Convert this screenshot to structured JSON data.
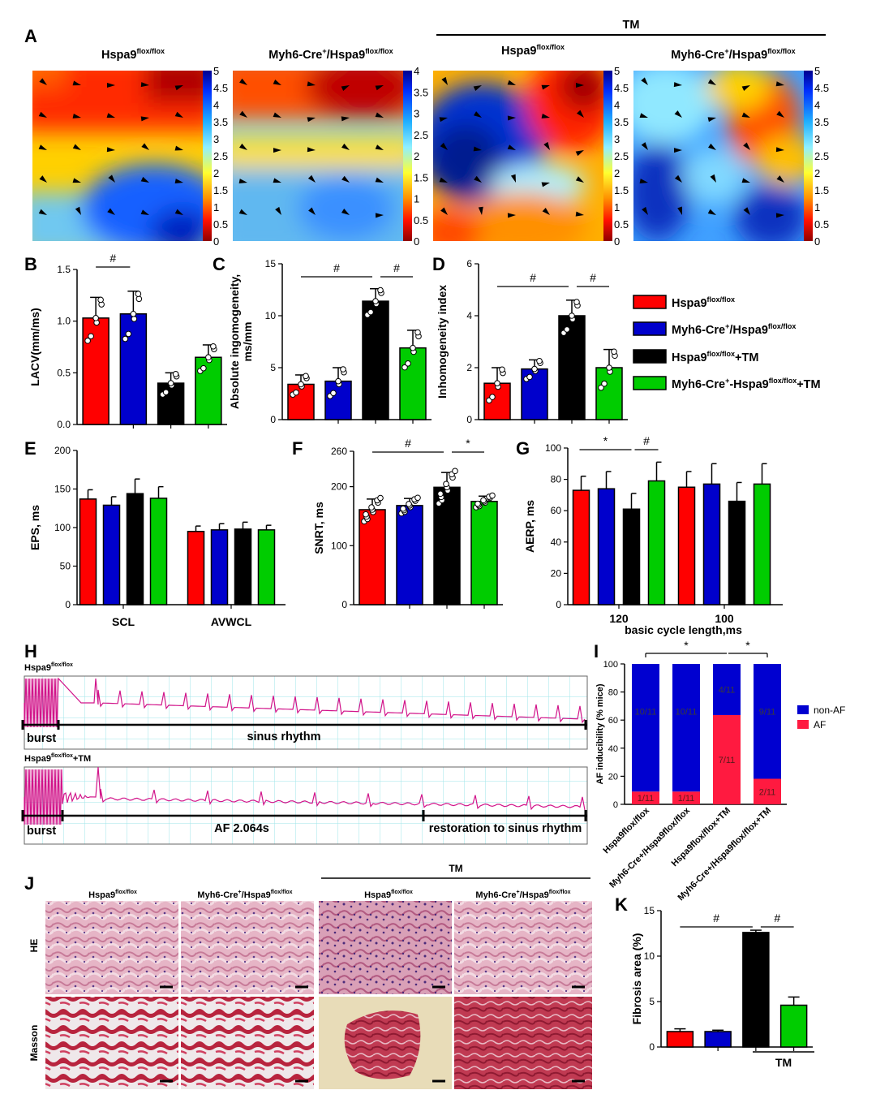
{
  "panel_letters": {
    "a": "A",
    "b": "B",
    "c": "C",
    "d": "D",
    "e": "E",
    "f": "F",
    "g": "G",
    "h": "H",
    "i": "I",
    "j": "J",
    "k": "K"
  },
  "groups": [
    {
      "name": "Hspa9flox/flox",
      "color": "#ff0000"
    },
    {
      "name": "Myh6-Cre+/Hspa9flox/flox",
      "color": "#0000cc"
    },
    {
      "name": "Hspa9flox/flox+TM",
      "color": "#000000"
    },
    {
      "name": "Myh6-Cre+-Hspa9flox/flox+TM",
      "color": "#00cc00"
    }
  ],
  "legend": {
    "l1_base": "Hspa9",
    "l1_sup": "flox/flox",
    "l2_base": "Myh6-Cre",
    "l2_sup1": "+",
    "l2_mid": "/Hspa9",
    "l2_sup2": "flox/flox",
    "l3_base": "Hspa9",
    "l3_sup": "flox/flox",
    "l3_tail": "+TM",
    "l4_base": "Myh6-Cre",
    "l4_sup1": "+",
    "l4_mid": "-Hspa9",
    "l4_sup2": "flox/flox",
    "l4_tail": "+TM"
  },
  "map_panel": {
    "tm_label": "TM",
    "titles": [
      {
        "base": "Hspa9",
        "sup": "flox/flox"
      },
      {
        "base": "Myh6-Cre",
        "sup1": "+",
        "mid": "/Hspa9",
        "sup2": "flox/flox"
      },
      {
        "base": "Hspa9",
        "sup": "flox/flox"
      },
      {
        "base": "Myh6-Cre",
        "sup1": "+",
        "mid": "/Hspa9",
        "sup2": "flox/flox"
      }
    ],
    "colorbars": [
      [
        "5",
        "4.5",
        "4",
        "3.5",
        "3",
        "2.5",
        "2",
        "1.5",
        "1",
        "0.5",
        "0"
      ],
      [
        "4",
        "3.5",
        "3",
        "2.5",
        "2",
        "1.5",
        "1",
        "0.5",
        "0"
      ],
      [
        "5",
        "4.5",
        "4",
        "3.5",
        "3",
        "2.5",
        "2",
        "1.5",
        "1",
        "0.5",
        "0"
      ],
      [
        "5",
        "4.5",
        "4",
        "3.5",
        "3",
        "2.5",
        "2",
        "1.5",
        "1",
        "0.5",
        "0"
      ]
    ]
  },
  "chart_data": [
    {
      "id": "B",
      "type": "bar",
      "ylabel": "LACV(mm/ms)",
      "ylim": [
        0,
        1.5
      ],
      "yticks": [
        "0.0",
        "0.5",
        "1.0",
        "1.5"
      ],
      "values": [
        1.03,
        1.07,
        0.4,
        0.65
      ],
      "errors": [
        0.2,
        0.22,
        0.1,
        0.12
      ],
      "significance": [
        {
          "symbol": "#",
          "between": [
            0,
            1
          ]
        }
      ]
    },
    {
      "id": "C",
      "type": "bar",
      "ylabel": "Absolute ingomogeneity, ms/mm",
      "ylabel_line1": "Absolute ingomogeneity,",
      "ylabel_line2": "ms/mm",
      "ylim": [
        0,
        15
      ],
      "yticks": [
        "0",
        "5",
        "10",
        "15"
      ],
      "values": [
        3.4,
        3.7,
        11.4,
        6.9
      ],
      "errors": [
        0.9,
        1.3,
        1.2,
        1.7
      ],
      "significance": [
        {
          "symbol": "#",
          "between": [
            0,
            2
          ]
        },
        {
          "symbol": "#",
          "between": [
            2,
            3
          ]
        }
      ]
    },
    {
      "id": "D",
      "type": "bar",
      "ylabel": "Inhomogeneity index",
      "ylim": [
        0,
        6
      ],
      "yticks": [
        "0",
        "2",
        "4",
        "6"
      ],
      "values": [
        1.4,
        1.95,
        4.0,
        2.0
      ],
      "errors": [
        0.6,
        0.35,
        0.6,
        0.7
      ],
      "significance": [
        {
          "symbol": "#",
          "between": [
            0,
            2
          ]
        },
        {
          "symbol": "#",
          "between": [
            2,
            3
          ]
        }
      ]
    },
    {
      "id": "E",
      "type": "bar",
      "ylabel": "EPS, ms",
      "ylim": [
        0,
        200
      ],
      "yticks": [
        "0",
        "50",
        "100",
        "150",
        "200"
      ],
      "categories": [
        "SCL",
        "AVWCL"
      ],
      "series": [
        {
          "name": "Hspa9flox/flox",
          "values": [
            137,
            95
          ],
          "errors": [
            12,
            7
          ]
        },
        {
          "name": "Myh6-Cre+/Hspa9flox/flox",
          "values": [
            129,
            97
          ],
          "errors": [
            11,
            8
          ]
        },
        {
          "name": "Hspa9flox/flox+TM",
          "values": [
            144,
            98
          ],
          "errors": [
            19,
            9
          ]
        },
        {
          "name": "Myh6-Cre+-Hspa9flox/flox+TM",
          "values": [
            138,
            97
          ],
          "errors": [
            15,
            6
          ]
        }
      ]
    },
    {
      "id": "F",
      "type": "bar",
      "ylabel": "SNRT, ms",
      "ylim": [
        0,
        260
      ],
      "yticks": [
        "0",
        "100",
        "200",
        "260"
      ],
      "values": [
        161,
        168,
        199,
        175
      ],
      "errors": [
        18,
        12,
        25,
        9
      ],
      "significance": [
        {
          "symbol": "#",
          "between": [
            0,
            2
          ]
        },
        {
          "symbol": "*",
          "between": [
            2,
            3
          ]
        }
      ]
    },
    {
      "id": "G",
      "type": "bar",
      "ylabel": "AERP, ms",
      "xlabel": "basic cycle length,ms",
      "ylim": [
        0,
        100
      ],
      "yticks": [
        "0",
        "20",
        "40",
        "60",
        "80",
        "100"
      ],
      "categories": [
        "120",
        "100"
      ],
      "series": [
        {
          "name": "Hspa9flox/flox",
          "values": [
            73,
            75
          ],
          "errors": [
            9,
            10
          ]
        },
        {
          "name": "Myh6-Cre+/Hspa9flox/flox",
          "values": [
            74,
            77
          ],
          "errors": [
            11,
            13
          ]
        },
        {
          "name": "Hspa9flox/flox+TM",
          "values": [
            61,
            66
          ],
          "errors": [
            10,
            12
          ]
        },
        {
          "name": "Myh6-Cre+-Hspa9flox/flox+TM",
          "values": [
            79,
            77
          ],
          "errors": [
            12,
            13
          ]
        }
      ],
      "significance": [
        {
          "symbol": "*",
          "between": [
            0,
            2
          ]
        },
        {
          "symbol": "#",
          "between": [
            2,
            3
          ]
        }
      ]
    },
    {
      "id": "I",
      "type": "bar",
      "stacked": true,
      "ylabel": "AF inducibility (% mice)",
      "ylim": [
        0,
        100
      ],
      "yticks": [
        "0",
        "20",
        "40",
        "60",
        "80",
        "100"
      ],
      "categories": [
        "Hspa9flox/flox",
        "Myh6-Cre+/Hspa9flox/flox",
        "Hspa9flox/flox+TM",
        "Myh6-Cre+/Hspa9flox/flox+TM"
      ],
      "series": [
        {
          "name": "AF",
          "color": "#ff1a40",
          "values": [
            9.1,
            9.1,
            63.6,
            18.2
          ],
          "labels": [
            "1/11",
            "1/11",
            "7/11",
            "2/11"
          ]
        },
        {
          "name": "non-AF",
          "color": "#0000d0",
          "values": [
            90.9,
            90.9,
            36.4,
            81.8
          ],
          "labels": [
            "10/11",
            "10/11",
            "4/11",
            "9/11"
          ]
        }
      ],
      "legend": [
        "non-AF",
        "AF"
      ],
      "significance": [
        {
          "symbol": "*",
          "between": [
            0,
            2
          ]
        },
        {
          "symbol": "*",
          "between": [
            2,
            3
          ]
        }
      ]
    },
    {
      "id": "K",
      "type": "bar",
      "ylabel": "Fibrosis area (%)",
      "ylim": [
        0,
        15
      ],
      "yticks": [
        "0",
        "5",
        "10",
        "15"
      ],
      "values": [
        1.7,
        1.7,
        12.6,
        4.6
      ],
      "errors": [
        0.3,
        0.15,
        0.25,
        0.9
      ],
      "group_label": "TM",
      "significance": [
        {
          "symbol": "#",
          "between": [
            0,
            2
          ]
        },
        {
          "symbol": "#",
          "between": [
            2,
            3
          ]
        }
      ]
    }
  ],
  "traces": {
    "h_title1_base": "Hspa9",
    "h_title1_sup": "flox/flox",
    "h_title2_base": "Hspa9",
    "h_title2_sup": "flox/flox",
    "h_title2_tail": "+TM",
    "burst": "burst",
    "sinus": "sinus rhythm",
    "af": "AF 2.064s",
    "restoration": "restoration to sinus rhythm"
  },
  "histology": {
    "tm_label": "TM",
    "row_labels": [
      "HE",
      "Masson"
    ],
    "titles": [
      {
        "base": "Hspa9",
        "sup": "flox/flox"
      },
      {
        "base": "Myh6-Cre",
        "sup1": "+",
        "mid": "/Hspa9",
        "sup2": "flox/flox"
      },
      {
        "base": "Hspa9",
        "sup": "flox/flox"
      },
      {
        "base": "Myh6-Cre",
        "sup1": "+",
        "mid": "/Hspa9",
        "sup2": "flox/flox"
      }
    ]
  }
}
